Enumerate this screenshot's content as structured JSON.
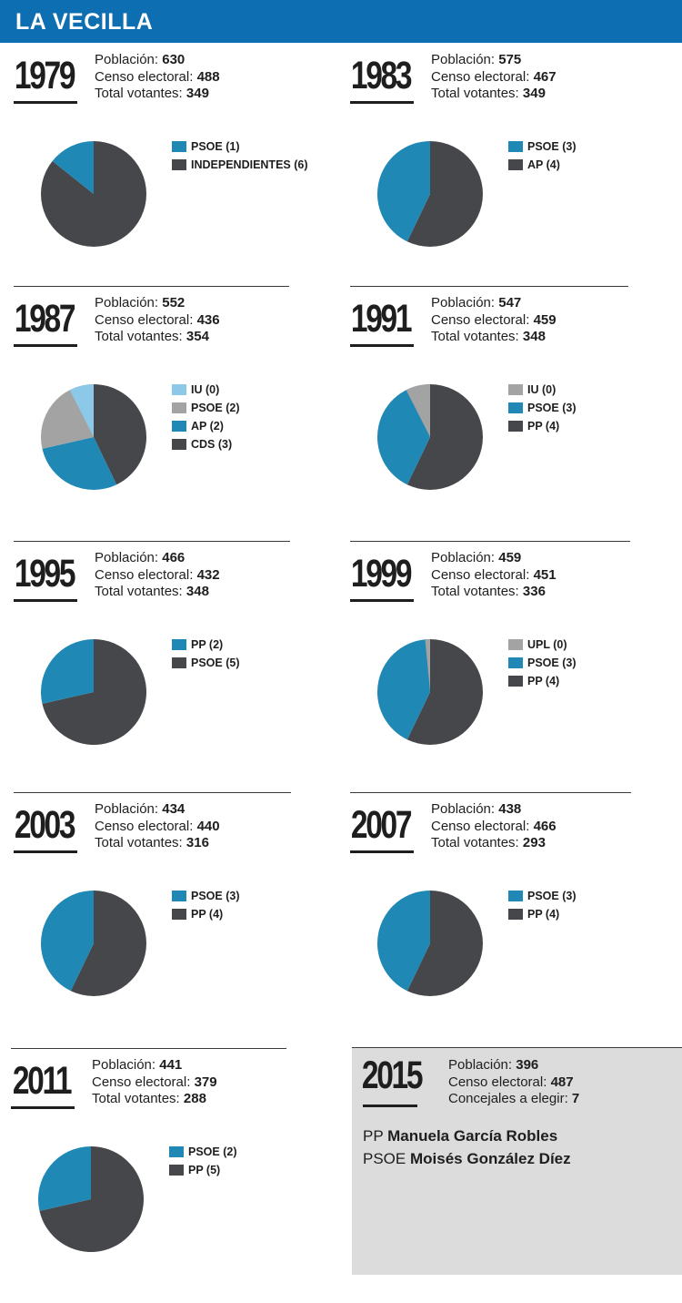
{
  "header": {
    "title": "LA VECILLA"
  },
  "stat_labels": {
    "poblacion": "Población:",
    "censo": "Censo electoral:",
    "votantes": "Total votantes:",
    "concejales": "Concejales a elegir:"
  },
  "colors": {
    "banner": "#0d6fb2",
    "blue": "#1f88b5",
    "dark": "#46474a",
    "light_blue": "#8cc8e8",
    "gray": "#a3a3a3"
  },
  "chart_data": [
    {
      "type": "pie",
      "title": "1979",
      "stats": {
        "poblacion": "630",
        "censo": "488",
        "votantes": "349"
      },
      "slices": [
        {
          "label": "PSOE (1)",
          "value": 1,
          "color": "#1f88b5"
        },
        {
          "label": "INDEPENDIENTES (6)",
          "value": 6,
          "color": "#46474a"
        }
      ]
    },
    {
      "type": "pie",
      "title": "1983",
      "stats": {
        "poblacion": "575",
        "censo": "467",
        "votantes": "349"
      },
      "slices": [
        {
          "label": "PSOE (3)",
          "value": 3,
          "color": "#1f88b5"
        },
        {
          "label": "AP (4)",
          "value": 4,
          "color": "#46474a"
        }
      ]
    },
    {
      "type": "pie",
      "title": "1987",
      "stats": {
        "poblacion": "552",
        "censo": "436",
        "votantes": "354"
      },
      "slices": [
        {
          "label": "IU (0)",
          "value": 0,
          "color": "#8cc8e8"
        },
        {
          "label": "PSOE (2)",
          "value": 2,
          "color": "#a3a3a3"
        },
        {
          "label": "AP (2)",
          "value": 2,
          "color": "#1f88b5"
        },
        {
          "label": "CDS (3)",
          "value": 3,
          "color": "#46474a"
        }
      ]
    },
    {
      "type": "pie",
      "title": "1991",
      "stats": {
        "poblacion": "547",
        "censo": "459",
        "votantes": "348"
      },
      "slices": [
        {
          "label": "IU (0)",
          "value": 0,
          "color": "#a3a3a3"
        },
        {
          "label": "PSOE (3)",
          "value": 3,
          "color": "#1f88b5"
        },
        {
          "label": "PP (4)",
          "value": 4,
          "color": "#46474a"
        }
      ]
    },
    {
      "type": "pie",
      "title": "1995",
      "stats": {
        "poblacion": "466",
        "censo": "432",
        "votantes": "348"
      },
      "slices": [
        {
          "label": "PP (2)",
          "value": 2,
          "color": "#1f88b5"
        },
        {
          "label": "PSOE (5)",
          "value": 5,
          "color": "#46474a"
        }
      ]
    },
    {
      "type": "pie",
      "title": "1999",
      "stats": {
        "poblacion": "459",
        "censo": "451",
        "votantes": "336"
      },
      "slices": [
        {
          "label": "UPL (0)",
          "value": 0,
          "color": "#a3a3a3"
        },
        {
          "label": "PSOE (3)",
          "value": 3,
          "color": "#1f88b5"
        },
        {
          "label": "PP (4)",
          "value": 4,
          "color": "#46474a"
        }
      ]
    },
    {
      "type": "pie",
      "title": "2003",
      "stats": {
        "poblacion": "434",
        "censo": "440",
        "votantes": "316"
      },
      "slices": [
        {
          "label": "PSOE (3)",
          "value": 3,
          "color": "#1f88b5"
        },
        {
          "label": "PP (4)",
          "value": 4,
          "color": "#46474a"
        }
      ]
    },
    {
      "type": "pie",
      "title": "2007",
      "stats": {
        "poblacion": "438",
        "censo": "466",
        "votantes": "293"
      },
      "slices": [
        {
          "label": "PSOE (3)",
          "value": 3,
          "color": "#1f88b5"
        },
        {
          "label": "PP (4)",
          "value": 4,
          "color": "#46474a"
        }
      ]
    },
    {
      "type": "pie",
      "title": "2011",
      "stats": {
        "poblacion": "441",
        "censo": "379",
        "votantes": "288"
      },
      "slices": [
        {
          "label": "PSOE (2)",
          "value": 2,
          "color": "#1f88b5"
        },
        {
          "label": "PP (5)",
          "value": 5,
          "color": "#46474a"
        }
      ]
    }
  ],
  "info_2015": {
    "year": "2015",
    "poblacion": "396",
    "censo": "487",
    "concejales": "7",
    "candidates": [
      {
        "party": "PP",
        "name": "Manuela García Robles"
      },
      {
        "party": "PSOE",
        "name": "Moisés González Díez"
      }
    ]
  }
}
